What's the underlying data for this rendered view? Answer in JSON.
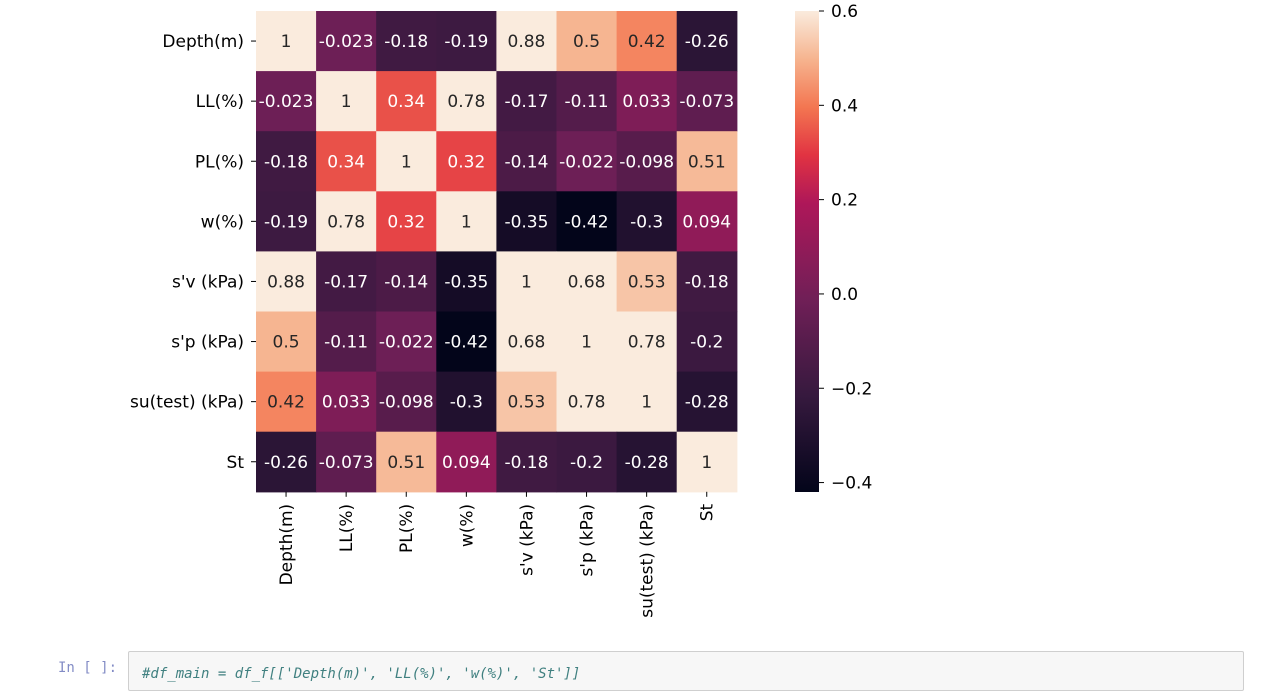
{
  "chart_data": {
    "type": "heatmap",
    "labels": [
      "Depth(m)",
      "LL(%)",
      "PL(%)",
      "w(%)",
      "s'v (kPa)",
      "s'p (kPa)",
      "su(test) (kPa)",
      "St"
    ],
    "values": [
      [
        1,
        -0.023,
        -0.18,
        -0.19,
        0.88,
        0.5,
        0.42,
        -0.26
      ],
      [
        -0.023,
        1,
        0.34,
        0.78,
        -0.17,
        -0.11,
        0.033,
        -0.073
      ],
      [
        -0.18,
        0.34,
        1,
        0.32,
        -0.14,
        -0.022,
        -0.098,
        0.51
      ],
      [
        -0.19,
        0.78,
        0.32,
        1,
        -0.35,
        -0.42,
        -0.3,
        0.094
      ],
      [
        0.88,
        -0.17,
        -0.14,
        -0.35,
        1,
        0.68,
        0.53,
        -0.18
      ],
      [
        0.5,
        -0.11,
        -0.022,
        -0.42,
        0.68,
        1,
        0.78,
        -0.2
      ],
      [
        0.42,
        0.033,
        -0.098,
        -0.3,
        0.53,
        0.78,
        1,
        -0.28
      ],
      [
        -0.26,
        -0.073,
        0.51,
        0.094,
        -0.18,
        -0.2,
        -0.28,
        1
      ]
    ],
    "annotations": [
      [
        "1",
        "-0.023",
        "-0.18",
        "-0.19",
        "0.88",
        "0.5",
        "0.42",
        "-0.26"
      ],
      [
        "-0.023",
        "1",
        "0.34",
        "0.78",
        "-0.17",
        "-0.11",
        "0.033",
        "-0.073"
      ],
      [
        "-0.18",
        "0.34",
        "1",
        "0.32",
        "-0.14",
        "-0.022",
        "-0.098",
        "0.51"
      ],
      [
        "-0.19",
        "0.78",
        "0.32",
        "1",
        "-0.35",
        "-0.42",
        "-0.3",
        "0.094"
      ],
      [
        "0.88",
        "-0.17",
        "-0.14",
        "-0.35",
        "1",
        "0.68",
        "0.53",
        "-0.18"
      ],
      [
        "0.5",
        "-0.11",
        "-0.022",
        "-0.42",
        "0.68",
        "1",
        "0.78",
        "-0.2"
      ],
      [
        "0.42",
        "0.033",
        "-0.098",
        "-0.3",
        "0.53",
        "0.78",
        "1",
        "-0.28"
      ],
      [
        "-0.26",
        "-0.073",
        "0.51",
        "0.094",
        "-0.18",
        "-0.2",
        "-0.28",
        "1"
      ]
    ],
    "colormap": "rocket",
    "vmin": -0.42,
    "vmax": 0.6,
    "colorbar_ticks": [
      0.6,
      0.4,
      0.2,
      0.0,
      -0.2,
      -0.4
    ],
    "colorbar_tick_labels": [
      "0.6",
      "0.4",
      "0.2",
      "0.0",
      "−0.2",
      "−0.4"
    ],
    "title": "",
    "xlabel": "",
    "ylabel": ""
  },
  "notebook": {
    "next_cell_prompt": "In [ ]:",
    "next_cell_code": "#df_main = df_f[['Depth(m)', 'LL(%)', 'w(%)', 'St']]"
  }
}
